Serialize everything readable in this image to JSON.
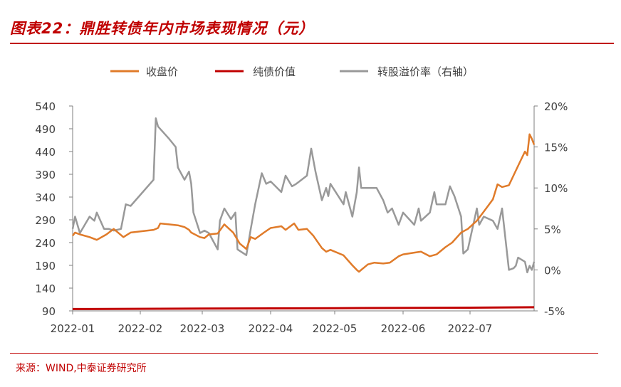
{
  "title": "图表22：鼎胜转债年内市场表现情况（元）",
  "source": "来源：WIND,中泰证券研究所",
  "chart_data": {
    "type": "line",
    "legend_position": "top",
    "grid": false,
    "x_tick_labels": [
      "2022-01",
      "2022-02",
      "2022-03",
      "2022-04",
      "2022-05",
      "2022-06",
      "2022-07"
    ],
    "xlim": [
      "2022-01-04",
      "2022-07-29"
    ],
    "y_left": {
      "ticks": [
        "540",
        "490",
        "440",
        "390",
        "340",
        "290",
        "240",
        "190",
        "140",
        "90"
      ],
      "lim": [
        90,
        540
      ]
    },
    "y_right": {
      "ticks": [
        "20%",
        "15%",
        "10%",
        "5%",
        "0%",
        "-5%"
      ],
      "lim": [
        -5,
        20
      ],
      "unit": "%"
    },
    "series": [
      {
        "name": "收盘价",
        "axis": "left",
        "color": "#e07b2a",
        "points": [
          [
            "2022-01-04",
            255
          ],
          [
            "2022-01-05",
            262
          ],
          [
            "2022-01-07",
            258
          ],
          [
            "2022-01-11",
            252
          ],
          [
            "2022-01-14",
            246
          ],
          [
            "2022-01-18",
            258
          ],
          [
            "2022-01-21",
            270
          ],
          [
            "2022-01-25",
            252
          ],
          [
            "2022-01-28",
            262
          ],
          [
            "2022-02-07",
            268
          ],
          [
            "2022-02-09",
            272
          ],
          [
            "2022-02-10",
            282
          ],
          [
            "2022-02-14",
            280
          ],
          [
            "2022-02-18",
            278
          ],
          [
            "2022-02-21",
            274
          ],
          [
            "2022-02-23",
            268
          ],
          [
            "2022-02-24",
            262
          ],
          [
            "2022-02-28",
            252
          ],
          [
            "2022-03-02",
            250
          ],
          [
            "2022-03-04",
            258
          ],
          [
            "2022-03-08",
            260
          ],
          [
            "2022-03-11",
            280
          ],
          [
            "2022-03-15",
            262
          ],
          [
            "2022-03-18",
            238
          ],
          [
            "2022-03-21",
            226
          ],
          [
            "2022-03-23",
            252
          ],
          [
            "2022-03-25",
            248
          ],
          [
            "2022-03-29",
            262
          ],
          [
            "2022-04-01",
            272
          ],
          [
            "2022-04-06",
            276
          ],
          [
            "2022-04-08",
            268
          ],
          [
            "2022-04-12",
            282
          ],
          [
            "2022-04-14",
            268
          ],
          [
            "2022-04-18",
            270
          ],
          [
            "2022-04-21",
            255
          ],
          [
            "2022-04-25",
            228
          ],
          [
            "2022-04-27",
            220
          ],
          [
            "2022-04-29",
            224
          ],
          [
            "2022-05-05",
            212
          ],
          [
            "2022-05-09",
            190
          ],
          [
            "2022-05-11",
            180
          ],
          [
            "2022-05-12",
            176
          ],
          [
            "2022-05-16",
            192
          ],
          [
            "2022-05-19",
            196
          ],
          [
            "2022-05-23",
            194
          ],
          [
            "2022-05-26",
            196
          ],
          [
            "2022-05-30",
            210
          ],
          [
            "2022-06-01",
            214
          ],
          [
            "2022-06-06",
            218
          ],
          [
            "2022-06-09",
            220
          ],
          [
            "2022-06-13",
            210
          ],
          [
            "2022-06-16",
            214
          ],
          [
            "2022-06-20",
            230
          ],
          [
            "2022-06-23",
            240
          ],
          [
            "2022-06-27",
            262
          ],
          [
            "2022-06-30",
            270
          ],
          [
            "2022-07-04",
            288
          ],
          [
            "2022-07-07",
            308
          ],
          [
            "2022-07-11",
            335
          ],
          [
            "2022-07-13",
            368
          ],
          [
            "2022-07-15",
            362
          ],
          [
            "2022-07-18",
            366
          ],
          [
            "2022-07-21",
            398
          ],
          [
            "2022-07-25",
            440
          ],
          [
            "2022-07-26",
            432
          ],
          [
            "2022-07-27",
            478
          ],
          [
            "2022-07-28",
            468
          ],
          [
            "2022-07-29",
            455
          ]
        ]
      },
      {
        "name": "纯债价值",
        "axis": "left",
        "color": "#c00000",
        "points": [
          [
            "2022-01-04",
            94
          ],
          [
            "2022-03-01",
            95
          ],
          [
            "2022-05-01",
            96
          ],
          [
            "2022-07-01",
            97
          ],
          [
            "2022-07-29",
            98
          ]
        ]
      },
      {
        "name": "转股溢价率（右轴）",
        "axis": "right",
        "color": "#999999",
        "points": [
          [
            "2022-01-04",
            5.0
          ],
          [
            "2022-01-05",
            6.5
          ],
          [
            "2022-01-07",
            4.5
          ],
          [
            "2022-01-11",
            6.5
          ],
          [
            "2022-01-13",
            6.0
          ],
          [
            "2022-01-14",
            7.0
          ],
          [
            "2022-01-17",
            5.0
          ],
          [
            "2022-01-19",
            5.0
          ],
          [
            "2022-01-21",
            4.8
          ],
          [
            "2022-01-24",
            5.0
          ],
          [
            "2022-01-26",
            8.0
          ],
          [
            "2022-01-28",
            7.8
          ],
          [
            "2022-02-07",
            11.0
          ],
          [
            "2022-02-08",
            18.5
          ],
          [
            "2022-02-09",
            17.5
          ],
          [
            "2022-02-14",
            16.0
          ],
          [
            "2022-02-17",
            15.0
          ],
          [
            "2022-02-18",
            12.5
          ],
          [
            "2022-02-21",
            11.0
          ],
          [
            "2022-02-23",
            12.0
          ],
          [
            "2022-02-24",
            10.5
          ],
          [
            "2022-02-25",
            7.0
          ],
          [
            "2022-02-28",
            4.5
          ],
          [
            "2022-03-02",
            4.8
          ],
          [
            "2022-03-04",
            4.5
          ],
          [
            "2022-03-08",
            2.5
          ],
          [
            "2022-03-09",
            6.0
          ],
          [
            "2022-03-11",
            7.5
          ],
          [
            "2022-03-14",
            6.2
          ],
          [
            "2022-03-16",
            7.0
          ],
          [
            "2022-03-17",
            2.5
          ],
          [
            "2022-03-21",
            1.8
          ],
          [
            "2022-03-23",
            5.0
          ],
          [
            "2022-03-25",
            8.0
          ],
          [
            "2022-03-28",
            11.8
          ],
          [
            "2022-03-30",
            10.5
          ],
          [
            "2022-04-01",
            10.8
          ],
          [
            "2022-04-06",
            9.5
          ],
          [
            "2022-04-08",
            11.5
          ],
          [
            "2022-04-11",
            10.2
          ],
          [
            "2022-04-13",
            10.5
          ],
          [
            "2022-04-18",
            11.5
          ],
          [
            "2022-04-20",
            14.8
          ],
          [
            "2022-04-22",
            12.0
          ],
          [
            "2022-04-25",
            8.5
          ],
          [
            "2022-04-27",
            10.0
          ],
          [
            "2022-04-28",
            9.0
          ],
          [
            "2022-04-29",
            10.5
          ],
          [
            "2022-05-05",
            8.0
          ],
          [
            "2022-05-06",
            9.5
          ],
          [
            "2022-05-09",
            6.5
          ],
          [
            "2022-05-11",
            9.5
          ],
          [
            "2022-05-12",
            12.5
          ],
          [
            "2022-05-13",
            10.0
          ],
          [
            "2022-05-18",
            10.0
          ],
          [
            "2022-05-20",
            10.0
          ],
          [
            "2022-05-23",
            8.5
          ],
          [
            "2022-05-25",
            7.0
          ],
          [
            "2022-05-27",
            7.5
          ],
          [
            "2022-05-30",
            5.5
          ],
          [
            "2022-06-01",
            7.0
          ],
          [
            "2022-06-06",
            5.5
          ],
          [
            "2022-06-08",
            7.5
          ],
          [
            "2022-06-09",
            6.0
          ],
          [
            "2022-06-13",
            7.0
          ],
          [
            "2022-06-15",
            9.5
          ],
          [
            "2022-06-16",
            8.0
          ],
          [
            "2022-06-20",
            8.0
          ],
          [
            "2022-06-22",
            10.2
          ],
          [
            "2022-06-24",
            9.0
          ],
          [
            "2022-06-27",
            6.5
          ],
          [
            "2022-06-28",
            2.0
          ],
          [
            "2022-06-30",
            2.5
          ],
          [
            "2022-07-04",
            7.5
          ],
          [
            "2022-07-05",
            5.5
          ],
          [
            "2022-07-07",
            6.5
          ],
          [
            "2022-07-11",
            6.0
          ],
          [
            "2022-07-13",
            5.0
          ],
          [
            "2022-07-15",
            7.5
          ],
          [
            "2022-07-18",
            0.0
          ],
          [
            "2022-07-20",
            0.2
          ],
          [
            "2022-07-21",
            0.5
          ],
          [
            "2022-07-22",
            1.5
          ],
          [
            "2022-07-25",
            1.0
          ],
          [
            "2022-07-26",
            -0.3
          ],
          [
            "2022-07-27",
            0.5
          ],
          [
            "2022-07-28",
            0.0
          ],
          [
            "2022-07-29",
            1.0
          ]
        ]
      }
    ]
  }
}
